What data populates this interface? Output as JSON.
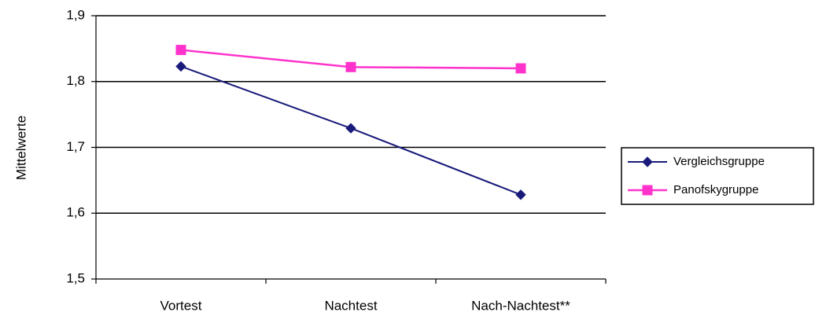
{
  "chart_data": {
    "type": "line",
    "categories": [
      "Vortest",
      "Nachtest",
      "Nach-Nachtest**"
    ],
    "ylabel": "Mittelwerte",
    "xlabel": "",
    "ylim": [
      1.5,
      1.9
    ],
    "yticks": [
      1.5,
      1.6,
      1.7,
      1.8,
      1.9
    ],
    "ytick_labels": [
      "1,5",
      "1,6",
      "1,7",
      "1,8",
      "1,9"
    ],
    "grid": "horizontal",
    "legend_position": "right",
    "series": [
      {
        "name": "Vergleichsgruppe",
        "values": [
          1.823,
          1.729,
          1.628
        ],
        "color": "#1a1a7a",
        "marker": "diamond"
      },
      {
        "name": "Panofskygruppe",
        "values": [
          1.848,
          1.822,
          1.82
        ],
        "color": "#ff33cc",
        "marker": "square"
      }
    ]
  }
}
